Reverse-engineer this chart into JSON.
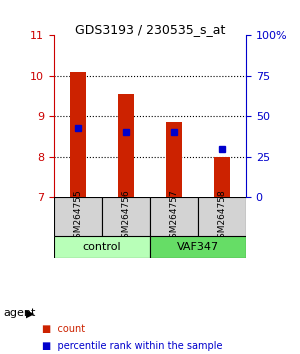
{
  "title": "GDS3193 / 230535_s_at",
  "samples": [
    "GSM264755",
    "GSM264756",
    "GSM264757",
    "GSM264758"
  ],
  "groups": [
    "control",
    "control",
    "VAF347",
    "VAF347"
  ],
  "group_labels": [
    "control",
    "VAF347"
  ],
  "group_colors": [
    "#b3ffb3",
    "#66ff66"
  ],
  "bar_bottom": 7.0,
  "bar_tops": [
    10.1,
    9.55,
    8.85,
    8.0
  ],
  "pct_ranks": [
    0.43,
    0.4,
    0.4,
    0.3
  ],
  "ylim": [
    7,
    11
  ],
  "yticks_left": [
    7,
    8,
    9,
    10,
    11
  ],
  "yticks_right": [
    0,
    25,
    50,
    75,
    100
  ],
  "ylabel_left_color": "#cc0000",
  "ylabel_right_color": "#0000cc",
  "bar_color": "#cc2200",
  "dot_color": "#0000cc",
  "bar_width": 0.35,
  "grid_color": "#000000",
  "legend_items": [
    "count",
    "percentile rank within the sample"
  ],
  "legend_colors": [
    "#cc2200",
    "#0000cc"
  ],
  "agent_label": "agent",
  "background_color": "#ffffff",
  "plot_bg": "#ffffff",
  "sample_bg": "#d3d3d3",
  "group1_color": "#b8ffb8",
  "group2_color": "#66dd66"
}
